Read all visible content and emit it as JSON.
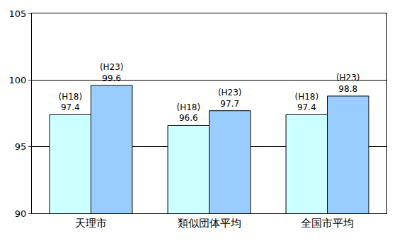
{
  "chart_data": {
    "type": "bar",
    "categories": [
      "天理市",
      "類似団体平均",
      "全国市平均"
    ],
    "series": [
      {
        "name": "(H18)",
        "color": "#ccffff",
        "values": [
          97.4,
          96.6,
          97.4
        ]
      },
      {
        "name": "(H23)",
        "color": "#99ccff",
        "values": [
          99.6,
          97.7,
          98.8
        ]
      }
    ],
    "ylim": [
      90,
      105
    ],
    "yticks": [
      90,
      95,
      100,
      105
    ],
    "grid": true,
    "data_labels": true,
    "legend": "none"
  }
}
